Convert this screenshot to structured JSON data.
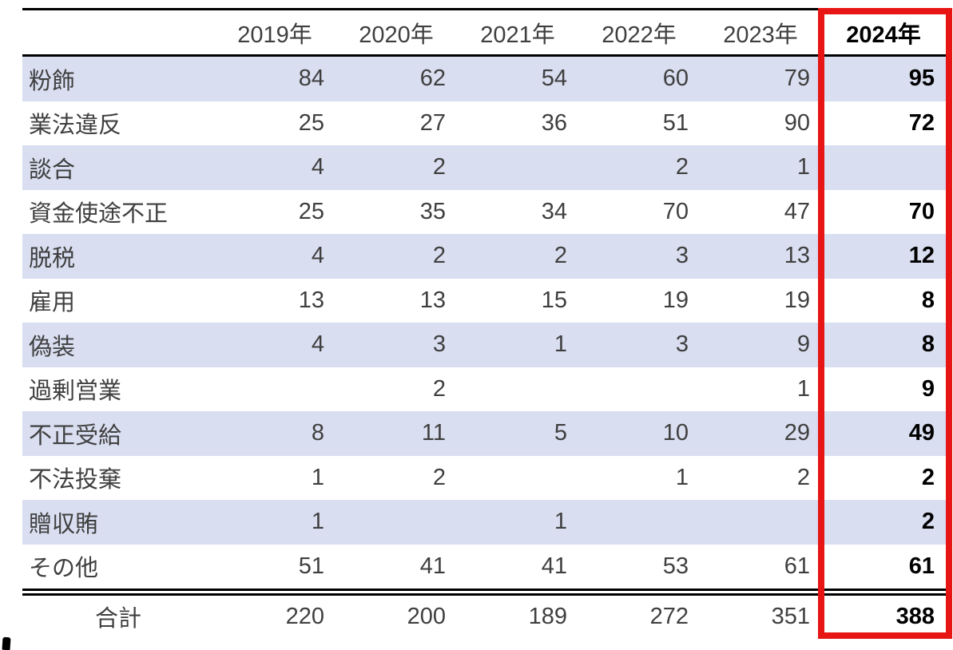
{
  "chart_data": {
    "type": "table",
    "title": "",
    "columns": [
      "",
      "2019年",
      "2020年",
      "2021年",
      "2022年",
      "2023年",
      "2024年"
    ],
    "highlight_column": "2024年",
    "rows": [
      {
        "label": "粉飾",
        "values": [
          "84",
          "62",
          "54",
          "60",
          "79",
          "95"
        ]
      },
      {
        "label": "業法違反",
        "values": [
          "25",
          "27",
          "36",
          "51",
          "90",
          "72"
        ]
      },
      {
        "label": "談合",
        "values": [
          "4",
          "2",
          "",
          "2",
          "1",
          ""
        ]
      },
      {
        "label": "資金使途不正",
        "values": [
          "25",
          "35",
          "34",
          "70",
          "47",
          "70"
        ]
      },
      {
        "label": "脱税",
        "values": [
          "4",
          "2",
          "2",
          "3",
          "13",
          "12"
        ]
      },
      {
        "label": "雇用",
        "values": [
          "13",
          "13",
          "15",
          "19",
          "19",
          "8"
        ]
      },
      {
        "label": "偽装",
        "values": [
          "4",
          "3",
          "1",
          "3",
          "9",
          "8"
        ]
      },
      {
        "label": "過剰営業",
        "values": [
          "",
          "2",
          "",
          "",
          "1",
          "9"
        ]
      },
      {
        "label": "不正受給",
        "values": [
          "8",
          "11",
          "5",
          "10",
          "29",
          "49"
        ]
      },
      {
        "label": "不法投棄",
        "values": [
          "1",
          "2",
          "",
          "1",
          "2",
          "2"
        ]
      },
      {
        "label": "贈収賄",
        "values": [
          "1",
          "",
          "1",
          "",
          "",
          "2"
        ]
      },
      {
        "label": "その他",
        "values": [
          "51",
          "41",
          "41",
          "53",
          "61",
          "61"
        ]
      }
    ],
    "total_row": {
      "label": "合計",
      "values": [
        "220",
        "200",
        "189",
        "272",
        "351",
        "388"
      ]
    },
    "layout_hints": {
      "banded_rows": "odd rows shaded starting with first data row",
      "grid": "top border, header underline, double rule above total, no inner gridlines",
      "highlight": "red rectangle around 2024年 column"
    },
    "colors": {
      "band": "#d9def0",
      "highlight_border": "#e81515",
      "text": "#3f3f3f",
      "bold_text": "#000000",
      "rule": "#000000"
    }
  }
}
